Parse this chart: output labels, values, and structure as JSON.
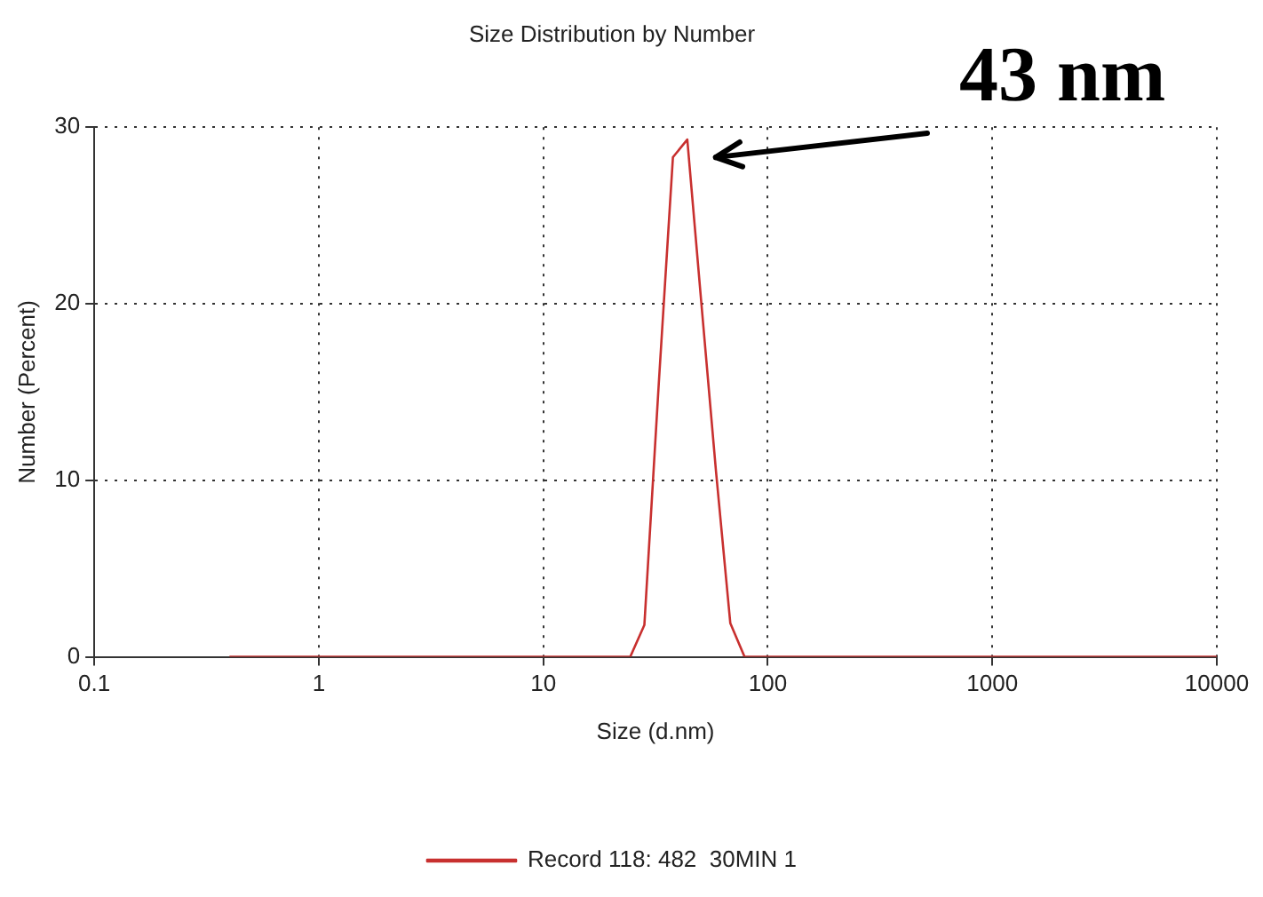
{
  "chart_data": {
    "type": "line",
    "title": "Size Distribution by Number",
    "xlabel": "Size (d.nm)",
    "ylabel": "Number (Percent)",
    "annotations": [
      "43 nm"
    ],
    "x": [
      0.4,
      1,
      10,
      24.4,
      28.2,
      32.7,
      37.8,
      43.8,
      50.7,
      58.8,
      68.1,
      78.8,
      100,
      1000,
      10000
    ],
    "series": [
      {
        "name": "Record 118: 482  30MIN 1",
        "color": "#c8302f",
        "values": [
          0,
          0,
          0,
          0,
          1.8,
          15.5,
          28.3,
          29.3,
          19.9,
          10.5,
          1.9,
          0,
          0,
          0,
          0
        ]
      }
    ],
    "xlim": [
      0.1,
      10000
    ],
    "ylim": [
      0,
      30
    ],
    "xticks": [
      0.1,
      1,
      10,
      100,
      1000,
      10000
    ],
    "yticks": [
      0,
      10,
      20,
      30
    ],
    "log": "x",
    "grid": true,
    "legend": "bottom",
    "marker": "none",
    "line_style": "solid"
  }
}
